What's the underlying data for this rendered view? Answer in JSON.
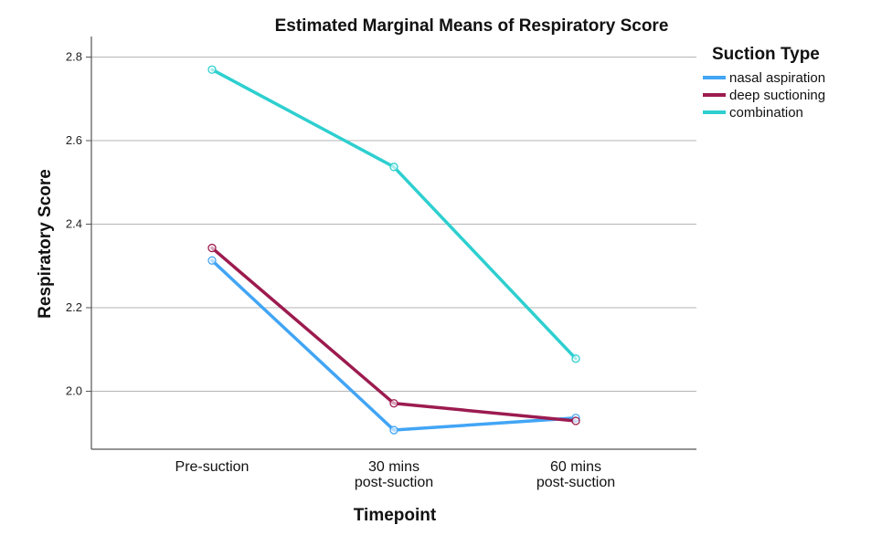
{
  "chart_data": {
    "type": "line",
    "title": "Estimated Marginal Means of Respiratory Score",
    "xlabel": "Timepoint",
    "ylabel": "Respiratory Score",
    "categories": [
      [
        "Pre-suction"
      ],
      [
        "30 mins",
        "post-suction"
      ],
      [
        "60 mins",
        "post-suction"
      ]
    ],
    "yticks": [
      "2.0",
      "2.2",
      "2.4",
      "2.6",
      "2.8"
    ],
    "ylim": [
      1.86,
      2.85
    ],
    "grid": "horizontal",
    "legend_title": "Suction Type",
    "legend_position": "top-right",
    "series": [
      {
        "name": "nasal aspiration",
        "color": "#42A5F5",
        "values": [
          2.313,
          1.907,
          1.936
        ]
      },
      {
        "name": "deep suctioning",
        "color": "#9C1B4F",
        "values": [
          2.343,
          1.971,
          1.929
        ]
      },
      {
        "name": "combination",
        "color": "#2ECFCF",
        "values": [
          2.77,
          2.537,
          2.078
        ]
      }
    ]
  }
}
